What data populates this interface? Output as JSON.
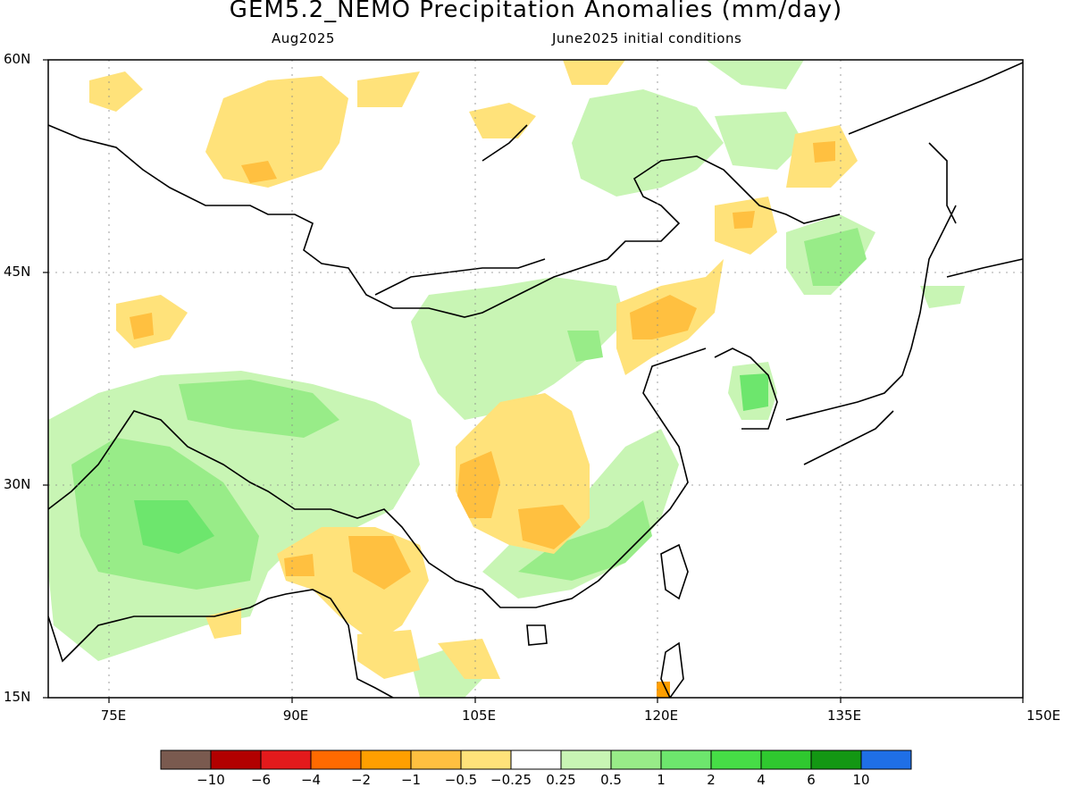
{
  "title": "GEM5.2_NEMO Precipitation Anomalies (mm/day)",
  "subtitle_left": "Aug2025",
  "subtitle_right": "June2025 initial conditions",
  "axes": {
    "lon_range": [
      70,
      150
    ],
    "lat_range": [
      15,
      60
    ],
    "lat_ticks": [
      "60N",
      "45N",
      "30N",
      "15N"
    ],
    "lon_ticks": [
      "75E",
      "90E",
      "105E",
      "120E",
      "135E",
      "150E"
    ],
    "gridlines": "dotted"
  },
  "colorbar": {
    "colors": [
      "#7a5a4f",
      "#b20000",
      "#e31a1c",
      "#ff6a00",
      "#ff9f00",
      "#ffc040",
      "#ffe27a",
      "#ffffff",
      "#c8f5b4",
      "#98ec88",
      "#6de66d",
      "#46dd46",
      "#2fc82f",
      "#139713",
      "#1f6fe6"
    ],
    "labels": [
      "−10",
      "−6",
      "−4",
      "−2",
      "−1",
      "−0.5",
      "−0.25",
      "0.25",
      "0.5",
      "1",
      "2",
      "4",
      "6",
      "10"
    ]
  },
  "colors": {
    "dry_light": "#ffe27a",
    "dry_mid": "#ffc040",
    "dry_strong": "#ff9f00",
    "wet_light": "#c8f5b4",
    "wet_mid": "#98ec88",
    "wet_strong": "#6de66d"
  }
}
